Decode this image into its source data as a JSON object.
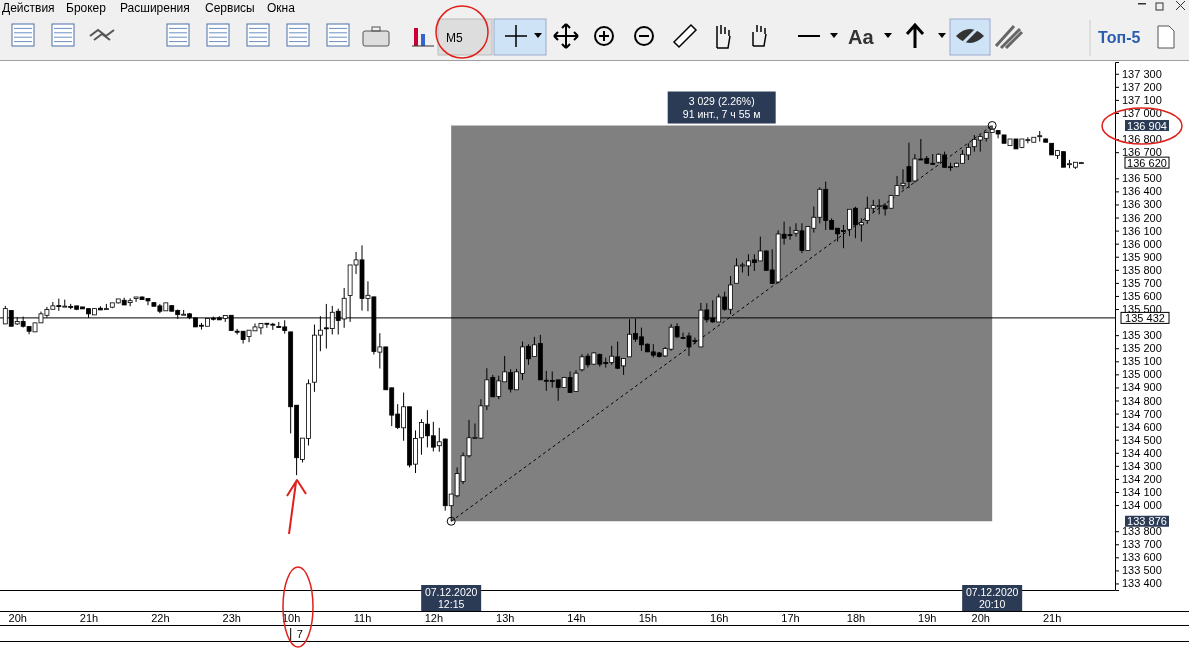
{
  "chart_data": {
    "type": "candlestick",
    "categories": [
      null,
      null,
      "20h",
      null,
      null,
      null,
      null,
      null,
      null,
      null,
      null,
      null,
      null,
      null,
      "21h",
      null,
      null,
      null,
      null,
      null,
      null,
      null,
      null,
      null,
      null,
      null,
      "22h",
      null,
      null,
      null,
      null,
      null,
      null,
      null,
      null,
      null,
      null,
      null,
      "23h",
      null,
      null,
      null,
      null,
      null,
      null,
      null,
      null,
      null,
      "10h",
      null,
      null,
      null,
      null,
      null,
      null,
      null,
      null,
      null,
      null,
      null,
      "11h",
      null,
      null,
      null,
      null,
      null,
      null,
      null,
      null,
      null,
      null,
      null,
      "12h",
      null,
      null,
      null,
      null,
      null,
      null,
      null,
      null,
      null,
      null,
      null,
      "13h",
      null,
      null,
      null,
      null,
      null,
      null,
      null,
      null,
      null,
      null,
      null,
      "14h",
      null,
      null,
      null,
      null,
      null,
      null,
      null,
      null,
      null,
      null,
      null,
      "15h",
      null,
      null,
      null,
      null,
      null,
      null,
      null,
      null,
      null,
      null,
      null,
      "16h",
      null,
      null,
      null,
      null,
      null,
      null,
      null,
      null,
      null,
      null,
      null,
      "17h",
      null,
      null,
      null,
      null,
      null,
      null,
      null,
      null,
      null,
      null,
      "18h",
      null,
      null,
      null,
      null,
      null,
      null,
      null,
      null,
      null,
      null,
      null,
      "19h",
      null,
      null,
      null,
      null,
      null,
      null,
      null,
      null,
      "20h",
      null,
      null,
      null,
      null,
      null,
      null,
      null,
      null,
      null,
      null,
      null,
      "21h",
      null,
      null,
      null,
      null,
      null
    ],
    "ohlc": [
      [
        135386,
        135524,
        135386,
        135503
      ],
      [
        135488,
        135488,
        135368,
        135368
      ],
      [
        135386,
        135437,
        135378,
        135404
      ],
      [
        135404,
        135442,
        135358,
        135368
      ],
      [
        135366,
        135366,
        135307,
        135330
      ],
      [
        135325,
        135394,
        135325,
        135394
      ],
      [
        135394,
        135480,
        135394,
        135463
      ],
      [
        135452,
        135516,
        135434,
        135496
      ],
      [
        135498,
        135554,
        135498,
        135524
      ],
      [
        135526,
        135580,
        135486,
        135519
      ],
      [
        135522,
        135572,
        135520,
        135522
      ],
      [
        135519,
        135539,
        135498,
        135517
      ],
      [
        135524,
        135524,
        135491,
        135498
      ],
      [
        135516,
        135516,
        135501,
        135501
      ],
      [
        135503,
        135503,
        135432,
        135463
      ],
      [
        135455,
        135503,
        135455,
        135503
      ],
      [
        135506,
        135521,
        135493,
        135493
      ],
      [
        135501,
        135539,
        135501,
        135503
      ],
      [
        135514,
        135547,
        135506,
        135547
      ],
      [
        135547,
        135577,
        135542,
        135577
      ],
      [
        135567,
        135587,
        135531,
        135531
      ],
      [
        135549,
        135582,
        135521,
        135564
      ],
      [
        135580,
        135592,
        135554,
        135592
      ],
      [
        135592,
        135597,
        135572,
        135572
      ],
      [
        135580,
        135580,
        135529,
        135562
      ],
      [
        135549,
        135549,
        135521,
        135521
      ],
      [
        135524,
        135539,
        135468,
        135483
      ],
      [
        135486,
        135547,
        135486,
        135547
      ],
      [
        135526,
        135526,
        135483,
        135483
      ],
      [
        135488,
        135496,
        135424,
        135457
      ],
      [
        135457,
        135493,
        135455,
        135460
      ],
      [
        135463,
        135470,
        135422,
        135435
      ],
      [
        135432,
        135432,
        135363,
        135363
      ],
      [
        135376,
        135394,
        135343,
        135373
      ],
      [
        135368,
        135427,
        135368,
        135427
      ],
      [
        135429,
        135442,
        135412,
        135427
      ],
      [
        135432,
        135445,
        135417,
        135417
      ],
      [
        135427,
        135450,
        135401,
        135450
      ],
      [
        135452,
        135452,
        135335,
        135335
      ],
      [
        135330,
        135348,
        135305,
        135327
      ],
      [
        135330,
        135330,
        135236,
        135266
      ],
      [
        135289,
        135338,
        135246,
        135338
      ],
      [
        135333,
        135389,
        135333,
        135363
      ],
      [
        135356,
        135391,
        135305,
        135389
      ],
      [
        135391,
        135391,
        135356,
        135386
      ],
      [
        135384,
        135394,
        135340,
        135381
      ],
      [
        135366,
        135401,
        135356,
        135363
      ],
      [
        135363,
        135414,
        135312,
        135335
      ],
      [
        135325,
        135325,
        134548,
        134752
      ],
      [
        134764,
        134764,
        134229,
        134362
      ],
      [
        134349,
        134512,
        134326,
        134512
      ],
      [
        134510,
        134961,
        134456,
        134928
      ],
      [
        134940,
        135381,
        134866,
        135300
      ],
      [
        135300,
        135445,
        135177,
        135338
      ],
      [
        135356,
        135539,
        135198,
        135353
      ],
      [
        135350,
        135524,
        135305,
        135475
      ],
      [
        135483,
        135503,
        135305,
        135412
      ],
      [
        135424,
        135661,
        135356,
        135582
      ],
      [
        135603,
        135837,
        135401,
        135837
      ],
      [
        135837,
        135937,
        135768,
        135876
      ],
      [
        135876,
        135987,
        135488,
        135580
      ],
      [
        135580,
        135712,
        135483,
        135605
      ],
      [
        135593,
        135593,
        135152,
        135175
      ],
      [
        135170,
        135315,
        135045,
        135210
      ],
      [
        135210,
        135210,
        134882,
        134882
      ],
      [
        134897,
        134897,
        134604,
        134688
      ],
      [
        134696,
        134772,
        134581,
        134594
      ],
      [
        134591,
        134861,
        134492,
        134752
      ],
      [
        134752,
        134752,
        134288,
        134306
      ],
      [
        134313,
        134571,
        134245,
        134510
      ],
      [
        134515,
        134657,
        134385,
        134632
      ],
      [
        134619,
        134726,
        134441,
        134530
      ],
      [
        134530,
        134637,
        134410,
        134443
      ],
      [
        134454,
        134591,
        134408,
        134484
      ],
      [
        134505,
        134510,
        133957,
        133995
      ],
      [
        133995,
        134084,
        133876,
        134084
      ],
      [
        134071,
        134288,
        134059,
        134242
      ],
      [
        134181,
        134403,
        134161,
        134377
      ],
      [
        134377,
        134652,
        134364,
        134515
      ],
      [
        134515,
        134624,
        134512,
        134517
      ],
      [
        134512,
        134810,
        134505,
        134759
      ],
      [
        134759,
        135047,
        134726,
        134958
      ],
      [
        134976,
        134996,
        134828,
        134828
      ],
      [
        134831,
        134989,
        134810,
        134950
      ],
      [
        134943,
        135141,
        134943,
        135019
      ],
      [
        135014,
        135040,
        134861,
        134887
      ],
      [
        134882,
        135042,
        134882,
        135019
      ],
      [
        135007,
        135251,
        134958,
        135210
      ],
      [
        135215,
        135231,
        135073,
        135119
      ],
      [
        135136,
        135287,
        135136,
        135226
      ],
      [
        135236,
        135302,
        134958,
        134958
      ],
      [
        134955,
        135027,
        134874,
        134950
      ],
      [
        134953,
        135022,
        134899,
        134950
      ],
      [
        134958,
        134958,
        134798,
        134899
      ],
      [
        134899,
        134981,
        134899,
        134976
      ],
      [
        134976,
        135022,
        134861,
        134861
      ],
      [
        134869,
        135032,
        134869,
        135009
      ],
      [
        135035,
        135154,
        135022,
        135134
      ],
      [
        135139,
        135159,
        135052,
        135073
      ],
      [
        135078,
        135172,
        135073,
        135164
      ],
      [
        135152,
        135159,
        135058,
        135078
      ],
      [
        135090,
        135129,
        135052,
        135088
      ],
      [
        135091,
        135218,
        135073,
        135139
      ],
      [
        135134,
        135251,
        135040,
        135047
      ],
      [
        135065,
        135121,
        134996,
        135121
      ],
      [
        135134,
        135422,
        135134,
        135307
      ],
      [
        135312,
        135427,
        135249,
        135269
      ],
      [
        135287,
        135358,
        135180,
        135226
      ],
      [
        135231,
        135236,
        135172,
        135172
      ],
      [
        135172,
        135231,
        135129,
        135147
      ],
      [
        135164,
        135172,
        135129,
        135136
      ],
      [
        135141,
        135210,
        135134,
        135198
      ],
      [
        135193,
        135384,
        135180,
        135361
      ],
      [
        135366,
        135391,
        135277,
        135287
      ],
      [
        135282,
        135320,
        135269,
        135279
      ],
      [
        135294,
        135320,
        135141,
        135210
      ],
      [
        135259,
        135282,
        135231,
        135257
      ],
      [
        135210,
        135547,
        135210,
        135491
      ],
      [
        135493,
        135544,
        135396,
        135417
      ],
      [
        135429,
        135567,
        135396,
        135401
      ],
      [
        135401,
        135613,
        135401,
        135592
      ],
      [
        135592,
        135633,
        135486,
        135498
      ],
      [
        135498,
        135753,
        135460,
        135684
      ],
      [
        135697,
        135888,
        135697,
        135830
      ],
      [
        135835,
        135855,
        135779,
        135837
      ],
      [
        135830,
        135919,
        135753,
        135868
      ],
      [
        135876,
        135919,
        135791,
        135855
      ],
      [
        135868,
        136054,
        135868,
        135944
      ],
      [
        135944,
        135949,
        135796,
        135796
      ],
      [
        135799,
        135957,
        135695,
        135695
      ],
      [
        135707,
        136102,
        135695,
        136074
      ],
      [
        136072,
        136169,
        135993,
        136042
      ],
      [
        136069,
        136131,
        136029,
        136067
      ],
      [
        136080,
        136156,
        136054,
        136100
      ],
      [
        136098,
        136156,
        135927,
        135947
      ],
      [
        135947,
        136131,
        135947,
        136131
      ],
      [
        136118,
        136284,
        136085,
        136202
      ],
      [
        136202,
        136431,
        136156,
        136416
      ],
      [
        136416,
        136475,
        136105,
        136177
      ],
      [
        136177,
        136194,
        136110,
        136110
      ],
      [
        136118,
        136118,
        136016,
        136075
      ],
      [
        136100,
        136143,
        135965,
        136098
      ],
      [
        136110,
        136263,
        136059,
        136263
      ],
      [
        136271,
        136283,
        136042,
        136144
      ],
      [
        136144,
        136194,
        136016,
        136161
      ],
      [
        136177,
        136360,
        136151,
        136271
      ],
      [
        136271,
        136335,
        136233,
        136291
      ],
      [
        136289,
        136340,
        136225,
        136291
      ],
      [
        136289,
        136309,
        136215,
        136266
      ],
      [
        136271,
        136373,
        136271,
        136368
      ],
      [
        136368,
        136518,
        136368,
        136444
      ],
      [
        136444,
        136569,
        136416,
        136462
      ],
      [
        136589,
        136773,
        136424,
        136475
      ],
      [
        136480,
        136686,
        136467,
        136648
      ],
      [
        136648,
        136801,
        136640,
        136645
      ],
      [
        136653,
        136671,
        136610,
        136615
      ],
      [
        136615,
        136686,
        136602,
        136612
      ],
      [
        136623,
        136691,
        136615,
        136684
      ],
      [
        136679,
        136704,
        136584,
        136584
      ],
      [
        136589,
        136620,
        136556,
        136587
      ],
      [
        136589,
        136620,
        136584,
        136615
      ],
      [
        136615,
        136717,
        136615,
        136684
      ],
      [
        136679,
        136768,
        136640,
        136737
      ],
      [
        136742,
        136831,
        136704,
        136798
      ],
      [
        136793,
        136829,
        136704,
        136819
      ],
      [
        136806,
        136857,
        136781,
        136850
      ],
      [
        136850,
        136904,
        136850,
        136875
      ],
      [
        136865,
        136870,
        136806,
        136839
      ],
      [
        136832,
        136832,
        136768,
        136768
      ],
      [
        136750,
        136801,
        136750,
        136801
      ],
      [
        136801,
        136801,
        136725,
        136725
      ],
      [
        136737,
        136801,
        136730,
        136801
      ],
      [
        136793,
        136814,
        136768,
        136796
      ],
      [
        136776,
        136814,
        136776,
        136814
      ],
      [
        136824,
        136862,
        136781,
        136826
      ],
      [
        136801,
        136806,
        136776,
        136776
      ],
      [
        136768,
        136768,
        136679,
        136679
      ],
      [
        136674,
        136717,
        136648,
        136712
      ],
      [
        136704,
        136704,
        136585,
        136585
      ],
      [
        136610,
        136641,
        136577,
        136612
      ],
      [
        136585,
        136623,
        136572,
        136623
      ],
      [
        136620,
        136625,
        136615,
        136620
      ]
    ],
    "ylim": [
      133350,
      137390
    ],
    "yticks": [
      {
        "value": 133400,
        "label": "133 400"
      },
      {
        "value": 133500,
        "label": "133 500"
      },
      {
        "value": 133600,
        "label": "133 600"
      },
      {
        "value": 133700,
        "label": "133 700"
      },
      {
        "value": 133800,
        "label": "133 800"
      },
      {
        "value": 134000,
        "label": "134 000"
      },
      {
        "value": 134100,
        "label": "134 100"
      },
      {
        "value": 134200,
        "label": "134 200"
      },
      {
        "value": 134300,
        "label": "134 300"
      },
      {
        "value": 134400,
        "label": "134 400"
      },
      {
        "value": 134500,
        "label": "134 500"
      },
      {
        "value": 134600,
        "label": "134 600"
      },
      {
        "value": 134700,
        "label": "134 700"
      },
      {
        "value": 134800,
        "label": "134 800"
      },
      {
        "value": 134900,
        "label": "134 900"
      },
      {
        "value": 135000,
        "label": "135 000"
      },
      {
        "value": 135100,
        "label": "135 100"
      },
      {
        "value": 135200,
        "label": "135 200"
      },
      {
        "value": 135300,
        "label": "135 300"
      },
      {
        "value": 135500,
        "label": "135 500"
      },
      {
        "value": 135600,
        "label": "135 600"
      },
      {
        "value": 135700,
        "label": "135 700"
      },
      {
        "value": 135800,
        "label": "135 800"
      },
      {
        "value": 135900,
        "label": "135 900"
      },
      {
        "value": 136000,
        "label": "136 000"
      },
      {
        "value": 136100,
        "label": "136 100"
      },
      {
        "value": 136200,
        "label": "136 200"
      },
      {
        "value": 136300,
        "label": "136 300"
      },
      {
        "value": 136400,
        "label": "136 400"
      },
      {
        "value": 136500,
        "label": "136 500"
      },
      {
        "value": 136700,
        "label": "136 700"
      },
      {
        "value": 136800,
        "label": "136 800"
      },
      {
        "value": 137000,
        "label": "137 000"
      },
      {
        "value": 137100,
        "label": "137 100"
      },
      {
        "value": 137200,
        "label": "137 200"
      },
      {
        "value": 137300,
        "label": "137 300"
      }
    ],
    "ref_lines": [
      {
        "axis": "y",
        "value": 135432,
        "label": "135 432",
        "color": "#000000"
      }
    ],
    "annotations": [
      "Действия",
      "Брокер",
      "Расширения",
      "Сервисы",
      "Окна",
      "M5",
      "Aa",
      "Топ-5",
      {
        "text": "3 029 (2.26%)\n91 инт., 7 ч 55 м"
      },
      "136 904",
      "136 620",
      "133 876",
      "07.12.2020\n12:15",
      "07.12.2020\n20:10",
      "7"
    ],
    "grid": false
  }
}
